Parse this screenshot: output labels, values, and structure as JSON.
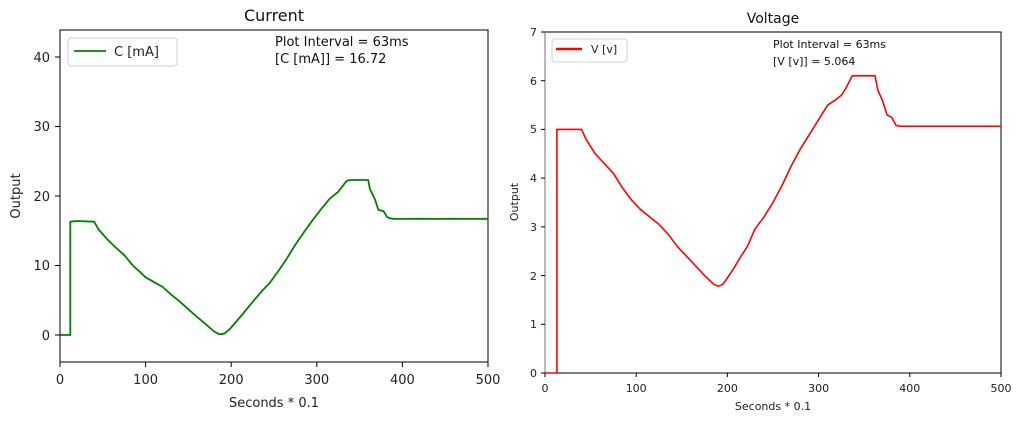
{
  "chart_data": [
    {
      "type": "line",
      "title": "Current",
      "xlabel": "Seconds * 0.1",
      "ylabel": "Output",
      "xlim": [
        0,
        500
      ],
      "ylim": [
        -4,
        44
      ],
      "xticks": [
        0,
        100,
        200,
        300,
        400,
        500
      ],
      "yticks": [
        0,
        10,
        20,
        30,
        40
      ],
      "grid": false,
      "legend": {
        "position": "upper left",
        "entries": [
          {
            "label": "C [mA]",
            "color": "#008000"
          }
        ]
      },
      "annotations": [
        "Plot Interval = 63ms",
        "[C [mA]] = 16.72"
      ],
      "series": [
        {
          "name": "C [mA]",
          "color": "#008000",
          "x": [
            0,
            12,
            12,
            20,
            40,
            45,
            55,
            65,
            75,
            85,
            95,
            100,
            110,
            120,
            130,
            140,
            150,
            160,
            170,
            180,
            186,
            192,
            198,
            205,
            212,
            220,
            228,
            235,
            245,
            255,
            265,
            275,
            285,
            295,
            305,
            315,
            325,
            335,
            340,
            360,
            362,
            368,
            372,
            378,
            382,
            385,
            390,
            400,
            420,
            440,
            460,
            480,
            500
          ],
          "y": [
            0,
            0,
            16.3,
            16.4,
            16.3,
            15.2,
            13.8,
            12.6,
            11.5,
            10.0,
            8.9,
            8.3,
            7.6,
            6.9,
            5.8,
            4.8,
            3.7,
            2.6,
            1.6,
            0.5,
            0.1,
            0.2,
            0.8,
            1.8,
            2.8,
            4.0,
            5.2,
            6.2,
            7.5,
            9.2,
            11.0,
            13.0,
            14.8,
            16.5,
            18.1,
            19.6,
            20.6,
            22.2,
            22.3,
            22.3,
            21.0,
            19.5,
            18.0,
            17.8,
            17.0,
            16.8,
            16.7,
            16.7,
            16.72,
            16.7,
            16.72,
            16.7,
            16.72
          ]
        }
      ]
    },
    {
      "type": "line",
      "title": "Voltage",
      "xlabel": "Seconds * 0.1",
      "ylabel": "Output",
      "xlim": [
        0,
        500
      ],
      "ylim": [
        0,
        7
      ],
      "xticks": [
        0,
        100,
        200,
        300,
        400,
        500
      ],
      "yticks": [
        0,
        1,
        2,
        3,
        4,
        5,
        6,
        7
      ],
      "grid": false,
      "legend": {
        "position": "upper left",
        "entries": [
          {
            "label": "V [v]",
            "color": "#ff0000"
          }
        ]
      },
      "annotations": [
        "Plot Interval = 63ms",
        "[V [v]] = 5.064"
      ],
      "series": [
        {
          "name": "V [v]",
          "color": "#ff0000",
          "x": [
            0,
            13,
            13,
            20,
            40,
            45,
            55,
            65,
            75,
            85,
            95,
            105,
            115,
            125,
            135,
            145,
            155,
            165,
            175,
            185,
            190,
            195,
            200,
            207,
            215,
            222,
            230,
            240,
            250,
            260,
            270,
            280,
            290,
            300,
            310,
            318,
            325,
            330,
            337,
            345,
            362,
            365,
            370,
            375,
            380,
            385,
            390,
            400,
            450,
            500
          ],
          "y": [
            0,
            0,
            5.0,
            5.0,
            5.0,
            4.8,
            4.5,
            4.3,
            4.1,
            3.8,
            3.55,
            3.35,
            3.2,
            3.05,
            2.85,
            2.6,
            2.4,
            2.2,
            2.0,
            1.82,
            1.78,
            1.82,
            1.95,
            2.15,
            2.4,
            2.6,
            2.95,
            3.2,
            3.5,
            3.85,
            4.25,
            4.6,
            4.9,
            5.2,
            5.5,
            5.6,
            5.7,
            5.85,
            6.1,
            6.1,
            6.1,
            5.8,
            5.6,
            5.3,
            5.25,
            5.08,
            5.064,
            5.064,
            5.064,
            5.064
          ]
        }
      ]
    }
  ],
  "current_chart": {
    "title": "Current",
    "xlabel": "Seconds * 0.1",
    "ylabel": "Output",
    "legend_label": "C [mA]",
    "annotation_line1": "Plot Interval = 63ms",
    "annotation_line2": "[C [mA]] = 16.72",
    "xtick_labels": [
      "0",
      "100",
      "200",
      "300",
      "400",
      "500"
    ],
    "ytick_labels": [
      "0",
      "10",
      "20",
      "30",
      "40"
    ],
    "line_color": "#008000"
  },
  "voltage_chart": {
    "title": "Voltage",
    "xlabel": "Seconds * 0.1",
    "ylabel": "Output",
    "legend_label": "V [v]",
    "annotation_line1": "Plot Interval = 63ms",
    "annotation_line2": "[V [v]] = 5.064",
    "xtick_labels": [
      "0",
      "100",
      "200",
      "300",
      "400",
      "500"
    ],
    "ytick_labels": [
      "0",
      "1",
      "2",
      "3",
      "4",
      "5",
      "6",
      "7"
    ],
    "line_color": "#ff0000"
  }
}
